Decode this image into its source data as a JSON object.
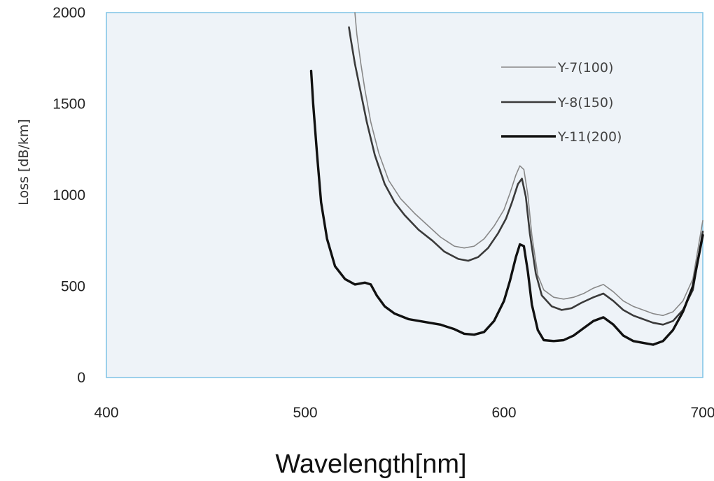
{
  "chart_data": {
    "type": "line",
    "xlabel": "Wavelength[nm]",
    "ylabel": "Loss [dB/km]",
    "xlim": [
      400,
      700
    ],
    "ylim": [
      0,
      2000
    ],
    "xticks": [
      400,
      500,
      600,
      700
    ],
    "yticks": [
      0,
      500,
      1000,
      1500,
      2000
    ],
    "grid": false,
    "legend_position": "top-right",
    "plot_background": "#eef3f8",
    "frame_color": "#7ec3e6",
    "series": [
      {
        "name": "Y-7(100)",
        "color": "#888888",
        "stroke": 1.6,
        "x": [
          525,
          526,
          528,
          530,
          533,
          537,
          542,
          548,
          555,
          562,
          568,
          575,
          580,
          585,
          590,
          595,
          600,
          603,
          606,
          608,
          610,
          612,
          614,
          617,
          620,
          625,
          630,
          635,
          640,
          645,
          650,
          655,
          660,
          665,
          670,
          675,
          680,
          685,
          690,
          695,
          700
        ],
        "y": [
          2000,
          1880,
          1720,
          1580,
          1400,
          1230,
          1080,
          980,
          900,
          830,
          770,
          720,
          710,
          720,
          760,
          830,
          920,
          1010,
          1110,
          1160,
          1140,
          1000,
          780,
          560,
          480,
          440,
          430,
          440,
          460,
          490,
          510,
          470,
          420,
          390,
          370,
          350,
          340,
          360,
          420,
          540,
          860
        ]
      },
      {
        "name": "Y-8(150)",
        "color": "#3a3a3a",
        "stroke": 2.6,
        "x": [
          522,
          523,
          525,
          528,
          531,
          535,
          540,
          545,
          550,
          557,
          564,
          570,
          577,
          582,
          587,
          592,
          597,
          601,
          604,
          607,
          609,
          611,
          613,
          616,
          619,
          624,
          629,
          634,
          639,
          645,
          650,
          655,
          660,
          665,
          670,
          675,
          680,
          685,
          690,
          695,
          700
        ],
        "y": [
          1920,
          1850,
          1720,
          1560,
          1400,
          1220,
          1060,
          960,
          890,
          810,
          750,
          690,
          650,
          640,
          660,
          710,
          790,
          870,
          960,
          1060,
          1090,
          990,
          790,
          570,
          450,
          390,
          370,
          380,
          410,
          440,
          460,
          420,
          370,
          340,
          320,
          300,
          290,
          310,
          370,
          480,
          800
        ]
      },
      {
        "name": "Y-11(200)",
        "color": "#111111",
        "stroke": 3.4,
        "x": [
          503,
          504,
          506,
          508,
          511,
          515,
          520,
          525,
          530,
          533,
          536,
          540,
          545,
          552,
          560,
          568,
          575,
          580,
          585,
          590,
          595,
          600,
          603,
          606,
          608,
          610,
          612,
          614,
          617,
          620,
          625,
          630,
          635,
          640,
          645,
          650,
          655,
          660,
          665,
          670,
          675,
          680,
          685,
          690,
          695,
          700
        ],
        "y": [
          1680,
          1500,
          1220,
          960,
          760,
          610,
          540,
          510,
          520,
          510,
          450,
          390,
          350,
          320,
          305,
          290,
          265,
          240,
          235,
          250,
          310,
          420,
          530,
          660,
          730,
          720,
          580,
          400,
          260,
          205,
          200,
          205,
          230,
          270,
          310,
          330,
          290,
          230,
          200,
          190,
          180,
          200,
          260,
          360,
          500,
          780
        ]
      }
    ]
  }
}
